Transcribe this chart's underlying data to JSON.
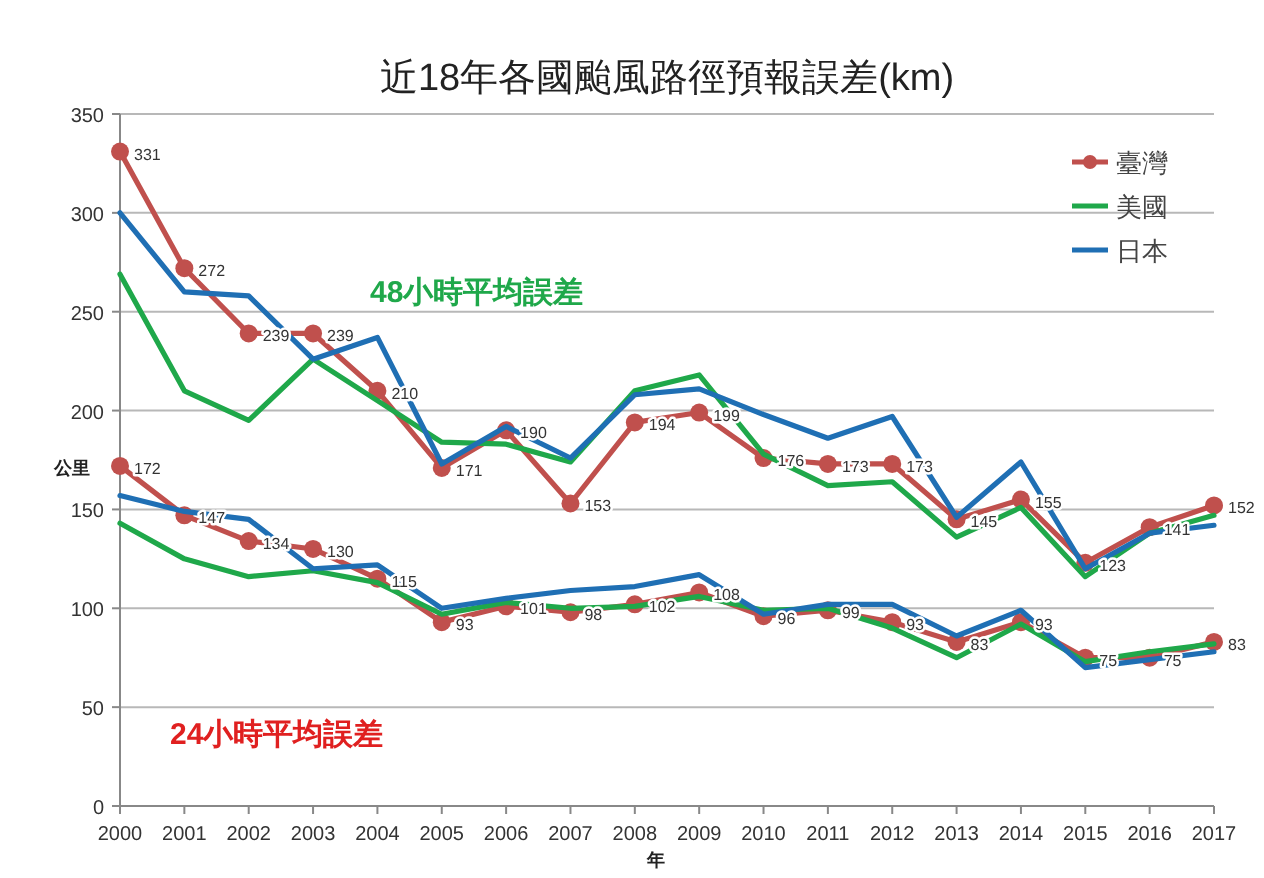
{
  "chart_data": {
    "type": "line",
    "title": "近18年各國颱風路徑預報誤差(km)",
    "xlabel": "年",
    "ylabel": "公里",
    "categories": [
      "2000",
      "2001",
      "2002",
      "2003",
      "2004",
      "2005",
      "2006",
      "2007",
      "2008",
      "2009",
      "2010",
      "2011",
      "2012",
      "2013",
      "2014",
      "2015",
      "2016",
      "2017"
    ],
    "ylim": [
      0,
      350
    ],
    "yticks": [
      0,
      50,
      100,
      150,
      200,
      250,
      300,
      350
    ],
    "grid": "y",
    "legend": "top right",
    "line_style": "solid",
    "annotations": [
      "48小時平均誤差",
      "24小時平均誤差"
    ],
    "series": [
      {
        "name": "臺灣",
        "color": "#c0504d",
        "marker": "circle",
        "values": [
          331,
          272,
          239,
          239,
          210,
          171,
          190,
          153,
          194,
          199,
          176,
          173,
          173,
          145,
          155,
          123,
          141,
          152
        ],
        "value_labels": [
          "331",
          "272",
          "239",
          "239",
          "210",
          "171",
          "190",
          "153",
          "194",
          "199",
          "176",
          "173",
          "173",
          "145",
          "155",
          "123",
          "141",
          "152"
        ]
      },
      {
        "name": "美國",
        "color": "#1fa84a",
        "marker": "none",
        "values": [
          269,
          210,
          195,
          226,
          205,
          184,
          183,
          174,
          210,
          218,
          178,
          162,
          164,
          136,
          151,
          116,
          138,
          147
        ]
      },
      {
        "name": "日本",
        "color": "#1f6fb4",
        "marker": "none",
        "values": [
          300,
          260,
          258,
          226,
          237,
          173,
          192,
          176,
          208,
          211,
          198,
          186,
          197,
          146,
          174,
          120,
          138,
          142
        ]
      },
      {
        "color": "#c0504d",
        "marker": "circle",
        "values": [
          172,
          147,
          134,
          130,
          115,
          93,
          101,
          98,
          102,
          108,
          96,
          99,
          93,
          83,
          93,
          75,
          75,
          83
        ],
        "value_labels": [
          "172",
          "147",
          "134",
          "130",
          "115",
          "93",
          "101",
          "98",
          "102",
          "108",
          "96",
          "99",
          "93",
          "83",
          "93",
          "75",
          "75",
          "83"
        ]
      },
      {
        "color": "#1fa84a",
        "marker": "none",
        "values": [
          143,
          125,
          116,
          119,
          113,
          97,
          103,
          100,
          101,
          106,
          99,
          100,
          90,
          75,
          92,
          73,
          78,
          82
        ]
      },
      {
        "color": "#1f6fb4",
        "marker": "none",
        "values": [
          157,
          149,
          145,
          120,
          122,
          100,
          105,
          109,
          111,
          117,
          97,
          102,
          102,
          86,
          99,
          70,
          74,
          78
        ]
      }
    ]
  }
}
